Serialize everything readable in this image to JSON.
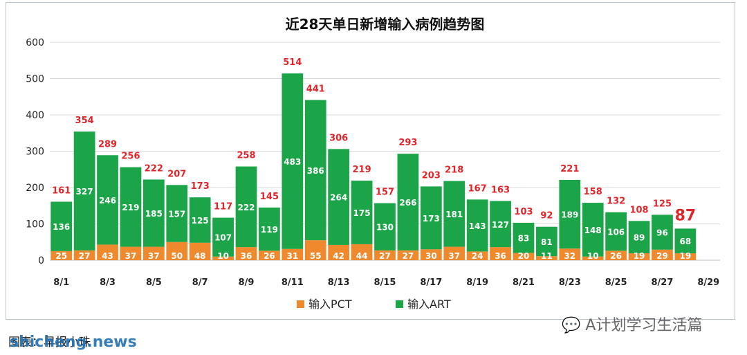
{
  "chart_data": {
    "type": "bar",
    "stacked": true,
    "title": "近28天单日新增输入病例趋势图",
    "categories": [
      "8/1",
      "8/2",
      "8/3",
      "8/4",
      "8/5",
      "8/6",
      "8/7",
      "8/8",
      "8/9",
      "8/10",
      "8/11",
      "8/12",
      "8/13",
      "8/14",
      "8/15",
      "8/16",
      "8/17",
      "8/18",
      "8/19",
      "8/20",
      "8/21",
      "8/22",
      "8/23",
      "8/24",
      "8/25",
      "8/26",
      "8/27",
      "8/28"
    ],
    "tick_labels": [
      "8/1",
      "8/3",
      "8/5",
      "8/7",
      "8/9",
      "8/11",
      "8/13",
      "8/15",
      "8/17",
      "8/19",
      "8/21",
      "8/23",
      "8/25",
      "8/27",
      "8/29"
    ],
    "series": [
      {
        "name": "输入PCT",
        "color": "#ee8a2d",
        "values": [
          25,
          27,
          43,
          37,
          37,
          50,
          48,
          10,
          36,
          26,
          31,
          55,
          42,
          44,
          27,
          27,
          30,
          37,
          24,
          36,
          20,
          11,
          32,
          10,
          26,
          19,
          29,
          19
        ]
      },
      {
        "name": "输入ART",
        "color": "#1ba448",
        "values": [
          136,
          327,
          246,
          219,
          185,
          157,
          125,
          107,
          222,
          119,
          483,
          386,
          264,
          175,
          130,
          266,
          173,
          181,
          143,
          127,
          83,
          81,
          189,
          148,
          106,
          89,
          96,
          68
        ]
      }
    ],
    "totals": [
      161,
      354,
      289,
      256,
      222,
      207,
      173,
      117,
      258,
      145,
      514,
      441,
      306,
      219,
      157,
      293,
      203,
      218,
      167,
      163,
      103,
      92,
      221,
      158,
      132,
      108,
      125,
      87
    ],
    "y_ticks": [
      0,
      100,
      200,
      300,
      400,
      500,
      600
    ],
    "ylim": [
      0,
      600
    ],
    "grid": true,
    "legend": "bottom-center",
    "total_label_color": "#e0262b",
    "grid_color": "#d9d9d9"
  },
  "watermarks": {
    "wechat": "A计划学习生活篇",
    "credit": "图表：早报小珠",
    "site": "shicheng.news"
  }
}
